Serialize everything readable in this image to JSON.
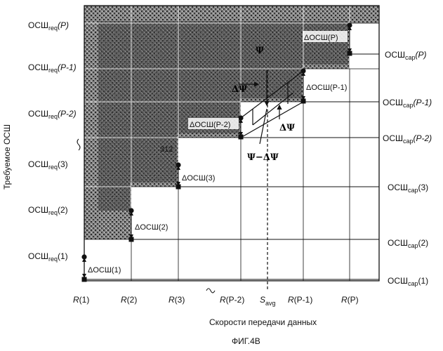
{
  "figure_caption": "ФИГ.4B",
  "x_axis_title": "Скорости передачи данных",
  "y_axis_title": "Требуемое ОСШ",
  "x_ticks": [
    {
      "main": "R",
      "arg": "(1)"
    },
    {
      "main": "R",
      "arg": "(2)"
    },
    {
      "main": "R",
      "arg": "(3)"
    },
    {
      "main": "R",
      "arg": "(P-2)"
    },
    {
      "main": "S",
      "sub": "avg"
    },
    {
      "main": "R",
      "arg": "(P-1)"
    },
    {
      "main": "R",
      "arg": "(P)"
    }
  ],
  "left_labels": [
    {
      "main": "ОСШ",
      "sub": "req",
      "arg": "(P)"
    },
    {
      "main": "ОСШ",
      "sub": "req",
      "arg": "(P-1)"
    },
    {
      "main": "ОСШ",
      "sub": "req",
      "arg": "(P-2)"
    },
    {
      "main": "ОСШ",
      "sub": "req",
      "arg": "(3)"
    },
    {
      "main": "ОСШ",
      "sub": "req",
      "arg": "(2)"
    },
    {
      "main": "ОСШ",
      "sub": "req",
      "arg": "(1)"
    }
  ],
  "right_labels": [
    {
      "main": "ОСШ",
      "sub": "cap",
      "arg": "(P)"
    },
    {
      "main": "ОСШ",
      "sub": "cap",
      "arg": "(P-1)"
    },
    {
      "main": "ОСШ",
      "sub": "cap",
      "arg": "(P-2)"
    },
    {
      "main": "ОСШ",
      "sub": "cap",
      "arg": "(3)"
    },
    {
      "main": "ОСШ",
      "sub": "cap",
      "arg": "(2)"
    },
    {
      "main": "ОСШ",
      "sub": "cap",
      "arg": "(1)"
    }
  ],
  "delta_labels": [
    "ΔОСШ(P)",
    "ΔОСШ(P-1)",
    "ΔОСШ(P-2)",
    "ΔОСШ(3)",
    "ΔОСШ(2)",
    "ΔОСШ(1)"
  ],
  "annotations": {
    "psi": "Ψ",
    "delta_psi": "ΔΨ",
    "psi_minus_delta_psi": "Ψ−ΔΨ",
    "ref_number": "312"
  }
}
